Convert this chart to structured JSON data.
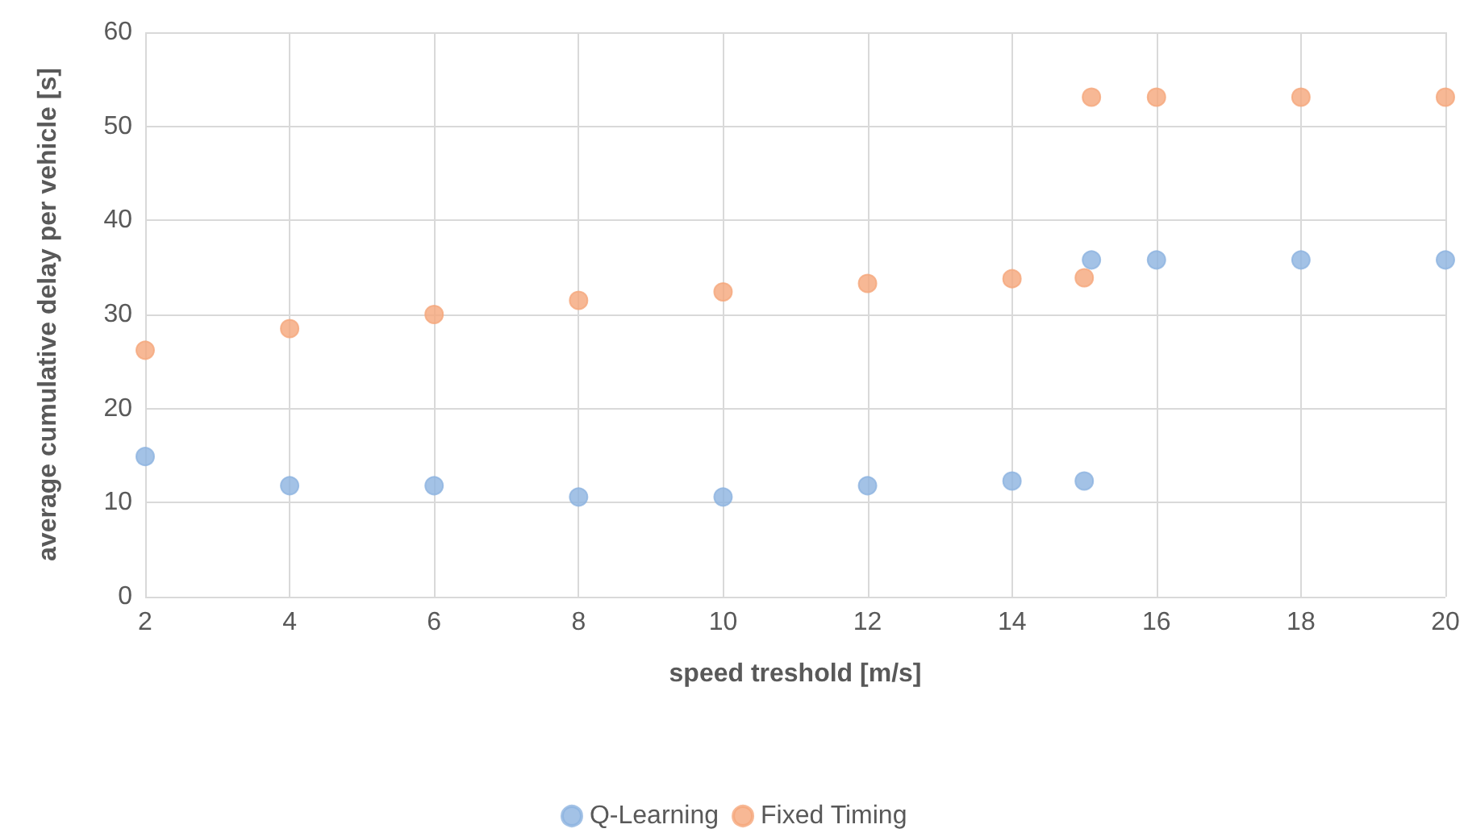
{
  "chart_data": {
    "type": "scatter",
    "xlabel": "speed treshold [m/s]",
    "ylabel": "average cumulative delay per vehicle [s]",
    "xlim": [
      2,
      20
    ],
    "xticks": [
      2,
      4,
      6,
      8,
      10,
      12,
      14,
      16,
      18,
      20
    ],
    "ylim": [
      0,
      60
    ],
    "yticks": [
      0,
      10,
      20,
      30,
      40,
      50,
      60
    ],
    "grid": true,
    "legend": "bottom",
    "marker": "circle",
    "series": [
      {
        "name": "Q-Learning",
        "color": "#8cb3e0",
        "x": [
          2,
          4,
          6,
          8,
          10,
          12,
          14,
          15,
          15.1,
          16,
          18,
          20
        ],
        "values": [
          14.9,
          11.8,
          11.8,
          10.6,
          10.6,
          11.8,
          12.3,
          12.3,
          35.8,
          35.8,
          35.8,
          35.8
        ]
      },
      {
        "name": "Fixed Timing",
        "color": "#f5a67a",
        "x": [
          2,
          4,
          6,
          8,
          10,
          12,
          14,
          15,
          15.1,
          16,
          18,
          20
        ],
        "values": [
          26.2,
          28.5,
          30,
          31.5,
          32.4,
          33.3,
          33.8,
          33.9,
          53.1,
          53.1,
          53.1,
          53.1
        ]
      }
    ]
  }
}
